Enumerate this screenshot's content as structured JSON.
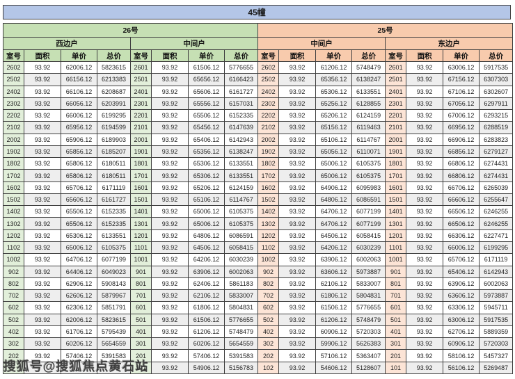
{
  "title": "45幢",
  "watermark": "搜狐号@搜狐焦点黄石站",
  "colors": {
    "banner_bg": "#b4c6e7",
    "green_header": "#c6e0b4",
    "green_light": "#e2efda",
    "peach_header": "#f8cbad",
    "peach_light": "#fce4d6",
    "stripe": "#eeeeee",
    "border": "#3f3f3f"
  },
  "chart_data": {
    "type": "table",
    "title": "45幢",
    "buildings": [
      "26号",
      "25号"
    ],
    "units": [
      "西边户",
      "中间户",
      "中间户",
      "东边户"
    ],
    "column_headers": [
      "室号",
      "面积",
      "单价",
      "总价"
    ],
    "rows": [
      [
        [
          "2602",
          "93.92",
          "62006.12",
          "5823615"
        ],
        [
          "2601",
          "93.92",
          "61506.12",
          "5776655"
        ],
        [
          "2602",
          "93.92",
          "61206.12",
          "5748479"
        ],
        [
          "2601",
          "93.92",
          "63006.12",
          "5917535"
        ]
      ],
      [
        [
          "2502",
          "93.92",
          "66156.12",
          "6213383"
        ],
        [
          "2501",
          "93.92",
          "65656.12",
          "6166423"
        ],
        [
          "2502",
          "93.92",
          "65356.12",
          "6138247"
        ],
        [
          "2501",
          "93.92",
          "67156.12",
          "6307303"
        ]
      ],
      [
        [
          "2402",
          "93.92",
          "66106.12",
          "6208687"
        ],
        [
          "2401",
          "93.92",
          "65606.12",
          "6161727"
        ],
        [
          "2402",
          "93.92",
          "65306.12",
          "6133551"
        ],
        [
          "2401",
          "93.92",
          "67106.12",
          "6302607"
        ]
      ],
      [
        [
          "2302",
          "93.92",
          "66056.12",
          "6203991"
        ],
        [
          "2301",
          "93.92",
          "65556.12",
          "6157031"
        ],
        [
          "2302",
          "93.92",
          "65256.12",
          "6128855"
        ],
        [
          "2301",
          "93.92",
          "67056.12",
          "6297911"
        ]
      ],
      [
        [
          "2202",
          "93.92",
          "66006.12",
          "6199295"
        ],
        [
          "2201",
          "93.92",
          "65506.12",
          "6152335"
        ],
        [
          "2202",
          "93.92",
          "65206.12",
          "6124159"
        ],
        [
          "2201",
          "93.92",
          "67006.12",
          "6293215"
        ]
      ],
      [
        [
          "2102",
          "93.92",
          "65956.12",
          "6194599"
        ],
        [
          "2101",
          "93.92",
          "65456.12",
          "6147639"
        ],
        [
          "2102",
          "93.92",
          "65156.12",
          "6119463"
        ],
        [
          "2101",
          "93.92",
          "66956.12",
          "6288519"
        ]
      ],
      [
        [
          "2002",
          "93.92",
          "65906.12",
          "6189903"
        ],
        [
          "2001",
          "93.92",
          "65406.12",
          "6142943"
        ],
        [
          "2002",
          "93.92",
          "65106.12",
          "6114767"
        ],
        [
          "2001",
          "93.92",
          "66906.12",
          "6283823"
        ]
      ],
      [
        [
          "1902",
          "93.92",
          "65856.12",
          "6185207"
        ],
        [
          "1901",
          "93.92",
          "65356.12",
          "6138247"
        ],
        [
          "1902",
          "93.92",
          "65056.12",
          "6110071"
        ],
        [
          "1901",
          "93.92",
          "66856.12",
          "6279127"
        ]
      ],
      [
        [
          "1802",
          "93.92",
          "65806.12",
          "6180511"
        ],
        [
          "1801",
          "93.92",
          "65306.12",
          "6133551"
        ],
        [
          "1802",
          "93.92",
          "65006.12",
          "6105375"
        ],
        [
          "1801",
          "93.92",
          "66806.12",
          "6274431"
        ]
      ],
      [
        [
          "1702",
          "93.92",
          "65806.12",
          "6180511"
        ],
        [
          "1701",
          "93.92",
          "65306.12",
          "6133551"
        ],
        [
          "1702",
          "93.92",
          "65006.12",
          "6105375"
        ],
        [
          "1701",
          "93.92",
          "66806.12",
          "6274431"
        ]
      ],
      [
        [
          "1602",
          "93.92",
          "65706.12",
          "6171119"
        ],
        [
          "1601",
          "93.92",
          "65206.12",
          "6124159"
        ],
        [
          "1602",
          "93.92",
          "64906.12",
          "6095983"
        ],
        [
          "1601",
          "93.92",
          "66706.12",
          "6265039"
        ]
      ],
      [
        [
          "1502",
          "93.92",
          "65606.12",
          "6161727"
        ],
        [
          "1501",
          "93.92",
          "65106.12",
          "6114767"
        ],
        [
          "1502",
          "93.92",
          "64806.12",
          "6086591"
        ],
        [
          "1501",
          "93.92",
          "66606.12",
          "6255647"
        ]
      ],
      [
        [
          "1402",
          "93.92",
          "65506.12",
          "6152335"
        ],
        [
          "1401",
          "93.92",
          "65006.12",
          "6105375"
        ],
        [
          "1402",
          "93.92",
          "64706.12",
          "6077199"
        ],
        [
          "1401",
          "93.92",
          "66506.12",
          "6246255"
        ]
      ],
      [
        [
          "1302",
          "93.92",
          "65506.12",
          "6152335"
        ],
        [
          "1301",
          "93.92",
          "65006.12",
          "6105375"
        ],
        [
          "1302",
          "93.92",
          "64706.12",
          "6077199"
        ],
        [
          "1301",
          "93.92",
          "66506.12",
          "6246255"
        ]
      ],
      [
        [
          "1202",
          "93.92",
          "65306.12",
          "6133551"
        ],
        [
          "1201",
          "93.92",
          "64806.12",
          "6086591"
        ],
        [
          "1202",
          "93.92",
          "64506.12",
          "6058415"
        ],
        [
          "1201",
          "93.92",
          "66306.12",
          "6227471"
        ]
      ],
      [
        [
          "1102",
          "93.92",
          "65006.12",
          "6105375"
        ],
        [
          "1101",
          "93.92",
          "64506.12",
          "6058415"
        ],
        [
          "1102",
          "93.92",
          "64206.12",
          "6030239"
        ],
        [
          "1101",
          "93.92",
          "66006.12",
          "6199295"
        ]
      ],
      [
        [
          "1002",
          "93.92",
          "64706.12",
          "6077199"
        ],
        [
          "1001",
          "93.92",
          "64206.12",
          "6030239"
        ],
        [
          "1002",
          "93.92",
          "63906.12",
          "6002063"
        ],
        [
          "1001",
          "93.92",
          "65706.12",
          "6171119"
        ]
      ],
      [
        [
          "902",
          "93.92",
          "64406.12",
          "6049023"
        ],
        [
          "901",
          "93.92",
          "63906.12",
          "6002063"
        ],
        [
          "902",
          "93.92",
          "63606.12",
          "5973887"
        ],
        [
          "901",
          "93.92",
          "65406.12",
          "6142943"
        ]
      ],
      [
        [
          "802",
          "93.92",
          "62906.12",
          "5908143"
        ],
        [
          "801",
          "93.92",
          "62406.12",
          "5861183"
        ],
        [
          "802",
          "93.92",
          "62106.12",
          "5833007"
        ],
        [
          "801",
          "93.92",
          "63906.12",
          "6002063"
        ]
      ],
      [
        [
          "702",
          "93.92",
          "62606.12",
          "5879967"
        ],
        [
          "701",
          "93.92",
          "62106.12",
          "5833007"
        ],
        [
          "702",
          "93.92",
          "61806.12",
          "5804831"
        ],
        [
          "701",
          "93.92",
          "63606.12",
          "5973887"
        ]
      ],
      [
        [
          "602",
          "93.92",
          "62306.12",
          "5851791"
        ],
        [
          "601",
          "93.92",
          "61806.12",
          "5804831"
        ],
        [
          "602",
          "93.92",
          "61506.12",
          "5776655"
        ],
        [
          "601",
          "93.92",
          "63306.12",
          "5945711"
        ]
      ],
      [
        [
          "502",
          "93.92",
          "62006.12",
          "5823615"
        ],
        [
          "501",
          "93.92",
          "61506.12",
          "5776655"
        ],
        [
          "502",
          "93.92",
          "61206.12",
          "5748479"
        ],
        [
          "501",
          "93.92",
          "63006.12",
          "5917535"
        ]
      ],
      [
        [
          "402",
          "93.92",
          "61706.12",
          "5795439"
        ],
        [
          "401",
          "93.92",
          "61206.12",
          "5748479"
        ],
        [
          "402",
          "93.92",
          "60906.12",
          "5720303"
        ],
        [
          "401",
          "93.92",
          "62706.12",
          "5889359"
        ]
      ],
      [
        [
          "302",
          "93.92",
          "60206.12",
          "5654559"
        ],
        [
          "301",
          "93.92",
          "60206.12",
          "5654559"
        ],
        [
          "302",
          "93.92",
          "59906.12",
          "5626383"
        ],
        [
          "301",
          "93.92",
          "60906.12",
          "5720303"
        ]
      ],
      [
        [
          "202",
          "93.92",
          "57406.12",
          "5391583"
        ],
        [
          "201",
          "93.92",
          "57406.12",
          "5391583"
        ],
        [
          "202",
          "93.92",
          "57106.12",
          "5363407"
        ],
        [
          "201",
          "93.92",
          "58106.12",
          "5457327"
        ]
      ],
      [
        [
          "",
          "",
          "",
          "743"
        ],
        [
          "101",
          "93.92",
          "54906.12",
          "5156783"
        ],
        [
          "102",
          "93.92",
          "54606.12",
          "5128607"
        ],
        [
          "101",
          "93.92",
          "56106.12",
          "5269487"
        ]
      ]
    ]
  }
}
